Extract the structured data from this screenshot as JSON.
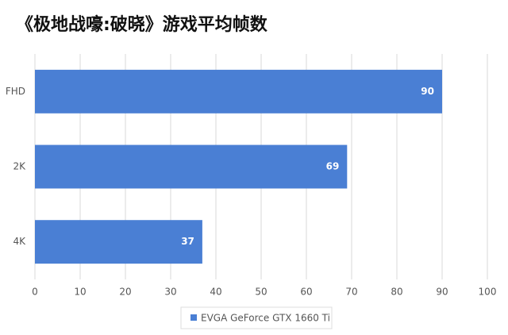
{
  "chart_data": {
    "type": "barh",
    "title": "《极地战嚎:破晓》游戏平均帧数",
    "categories": [
      "FHD",
      "2K",
      "4K"
    ],
    "series": [
      {
        "name": "EVGA GeForce GTX 1660 Ti",
        "color": "#4a7fd4",
        "values": [
          90,
          69,
          37
        ]
      }
    ],
    "xlim": [
      0,
      100
    ],
    "xticks": [
      0,
      10,
      20,
      30,
      40,
      50,
      60,
      70,
      80,
      90,
      100
    ],
    "grid": true,
    "legend": "bottom"
  }
}
